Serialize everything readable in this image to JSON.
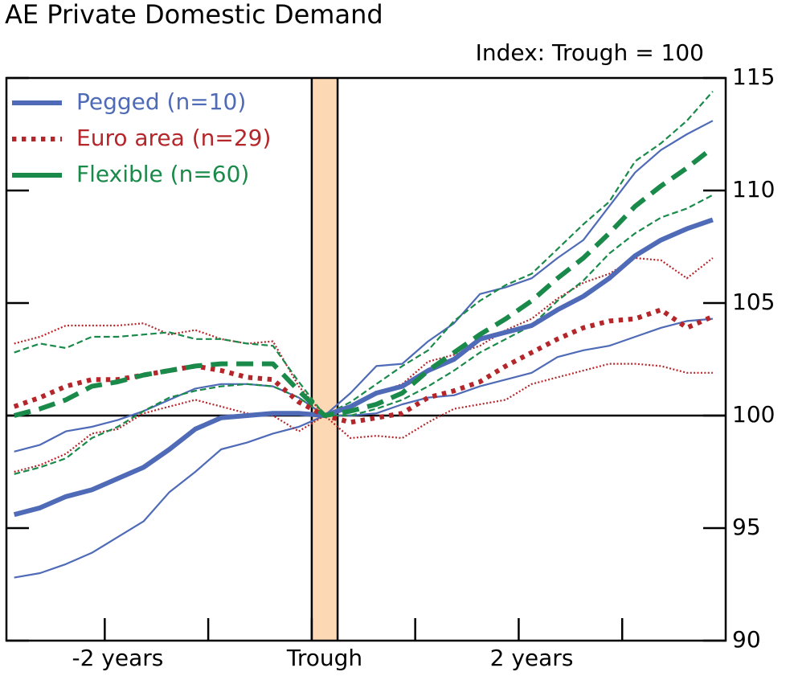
{
  "chart_data": {
    "type": "line",
    "title": "AE Private Domestic Demand",
    "subtitle": "Index: Trough = 100",
    "x": [
      -12,
      -11,
      -10,
      -9,
      -8,
      -7,
      -6,
      -5,
      -4,
      -3,
      -2,
      -1,
      0,
      1,
      2,
      3,
      4,
      5,
      6,
      7,
      8,
      9,
      10,
      11,
      12,
      13,
      14,
      15
    ],
    "xlim": [
      -12.3,
      15.5
    ],
    "xticks": [
      {
        "value": -8,
        "label": "-2 years"
      },
      {
        "value": 0,
        "label": "Trough"
      },
      {
        "value": 8,
        "label": "2 years"
      }
    ],
    "minor_xticks": [
      -8.5,
      -4.5,
      -0.5,
      3.5,
      7.5,
      11.5
    ],
    "ylim": [
      90,
      115
    ],
    "yticks": [
      90,
      95,
      100,
      105,
      110,
      115
    ],
    "reference_line": 100,
    "shade": {
      "xlim": [
        -0.5,
        0.5
      ],
      "color": "#fcd9b4"
    },
    "legend": "upper left",
    "series": [
      {
        "color": "#4f6bb7",
        "dash": "solid",
        "values": [
          98.4,
          98.7,
          99.3,
          99.5,
          99.8,
          100.2,
          100.7,
          101.2,
          101.4,
          101.4,
          101.3,
          100.8,
          100,
          101.0,
          102.2,
          102.3,
          103.3,
          104.1,
          105.4,
          105.7,
          106.1,
          107.0,
          107.8,
          109.3,
          110.8,
          111.8,
          112.5,
          113.1
        ]
      },
      {
        "color": "#4f6bb7",
        "dash": "solid",
        "values": [
          92.8,
          93.0,
          93.4,
          93.9,
          94.6,
          95.3,
          96.6,
          97.5,
          98.5,
          98.8,
          99.2,
          99.5,
          100,
          100.0,
          100.1,
          100.5,
          100.8,
          100.9,
          101.3,
          101.6,
          101.9,
          102.6,
          102.9,
          103.1,
          103.5,
          103.9,
          104.2,
          104.3
        ]
      },
      {
        "color": "#b5262b",
        "dash": "dotted",
        "values": [
          103.2,
          103.5,
          104.0,
          104.0,
          104.0,
          104.1,
          103.6,
          103.8,
          103.4,
          103.2,
          103.3,
          101.3,
          100,
          100.3,
          101.0,
          101.4,
          102.4,
          102.7,
          103.1,
          103.8,
          104.3,
          105.2,
          105.9,
          106.3,
          107.0,
          106.9,
          106.1,
          107.0
        ]
      },
      {
        "color": "#b5262b",
        "dash": "dotted",
        "values": [
          97.5,
          97.8,
          98.3,
          99.2,
          99.4,
          100.1,
          100.4,
          100.7,
          100.4,
          100.1,
          100.0,
          99.3,
          100,
          99.0,
          99.1,
          99.0,
          99.7,
          100.3,
          100.5,
          100.7,
          101.4,
          101.7,
          102.0,
          102.3,
          102.3,
          102.2,
          101.9,
          101.9
        ]
      },
      {
        "color": "#1a8a4a",
        "dash": "dashed",
        "values": [
          102.8,
          103.2,
          103.0,
          103.5,
          103.5,
          103.6,
          103.7,
          103.4,
          103.4,
          103.2,
          103.1,
          101.5,
          100,
          100.6,
          101.4,
          102.2,
          102.9,
          104.2,
          105.1,
          105.8,
          106.3,
          107.4,
          108.5,
          109.5,
          111.3,
          112.1,
          113.1,
          114.4
        ]
      },
      {
        "color": "#1a8a4a",
        "dash": "dashed",
        "values": [
          97.4,
          97.7,
          98.1,
          99.0,
          99.5,
          100.2,
          100.8,
          101.1,
          101.3,
          101.4,
          101.3,
          100.8,
          100,
          100.0,
          100.3,
          100.7,
          101.3,
          102.0,
          102.8,
          103.4,
          104.0,
          105.1,
          106.0,
          107.2,
          108.1,
          108.8,
          109.2,
          109.8
        ]
      },
      {
        "name": "Pegged (n=10)",
        "color": "#4f6bb7",
        "dash": "solid",
        "values": [
          95.6,
          95.9,
          96.4,
          96.7,
          97.2,
          97.7,
          98.5,
          99.4,
          99.9,
          100.0,
          100.1,
          100.1,
          100,
          100.4,
          101.0,
          101.3,
          102.0,
          102.5,
          103.4,
          103.7,
          104.0,
          104.7,
          105.3,
          106.1,
          107.1,
          107.8,
          108.3,
          108.7
        ]
      },
      {
        "name": "Euro area (n=29)",
        "color": "#b5262b",
        "dash": "dotted",
        "values": [
          100.4,
          100.8,
          101.3,
          101.6,
          101.6,
          101.8,
          102.0,
          102.2,
          102.0,
          101.7,
          101.6,
          100.6,
          100,
          99.7,
          99.9,
          100.1,
          100.8,
          101.1,
          101.5,
          102.2,
          102.8,
          103.4,
          103.9,
          104.2,
          104.3,
          104.7,
          103.9,
          104.4
        ]
      },
      {
        "name": "Flexible (n=60)",
        "color": "#1a8a4a",
        "dash": "dashed",
        "values": [
          100.0,
          100.3,
          100.7,
          101.3,
          101.5,
          101.8,
          102.0,
          102.2,
          102.3,
          102.3,
          102.3,
          101.1,
          100,
          100.2,
          100.5,
          101.0,
          102.0,
          102.8,
          103.6,
          104.3,
          105.1,
          106.1,
          107.0,
          108.1,
          109.3,
          110.2,
          111.0,
          111.9
        ]
      }
    ]
  }
}
